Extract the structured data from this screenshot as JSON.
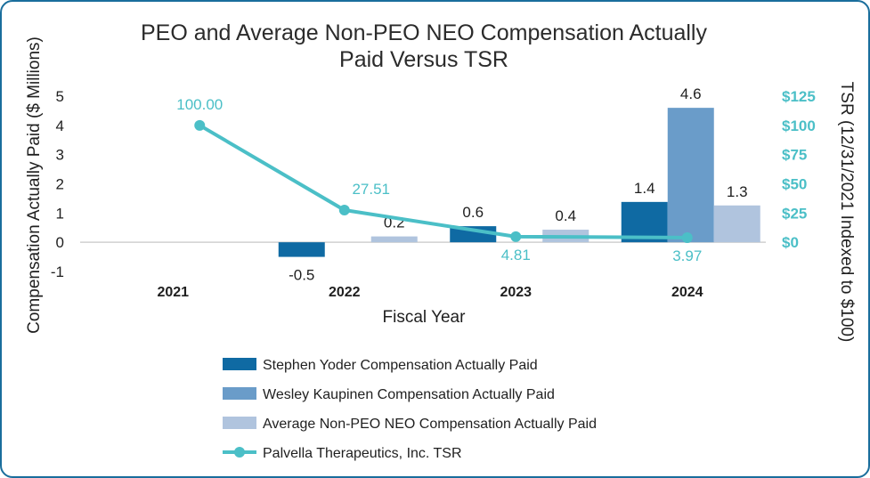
{
  "chart_data": {
    "type": "bar+line",
    "title_lines": [
      "PEO and Average Non-PEO NEO Compensation Actually",
      "Paid Versus TSR"
    ],
    "xlabel": "Fiscal Year",
    "ylabel": "Compensation Actually Paid ($ Millions)",
    "y2label": "TSR (12/31/2021 Indexed to $100)",
    "categories": [
      "2021",
      "2022",
      "2023",
      "2024"
    ],
    "ylim": [
      -1,
      5
    ],
    "yticks": [
      "-1",
      "0",
      "1",
      "2",
      "3",
      "4",
      "5"
    ],
    "y2lim": [
      -25,
      125
    ],
    "y2ticks": [
      "$0",
      "$25",
      "$50",
      "$75",
      "$100",
      "$125"
    ],
    "y2tick_values": [
      0,
      25,
      50,
      75,
      100,
      125
    ],
    "series": [
      {
        "name": "Stephen Yoder Compensation Actually Paid",
        "kind": "bar",
        "color": "#0f6aa3",
        "values": [
          null,
          -0.5,
          0.55,
          1.38
        ],
        "labels": [
          "",
          "-0.5",
          "0.6",
          "1.4"
        ]
      },
      {
        "name": "Wesley Kaupinen Compensation Actually Paid",
        "kind": "bar",
        "color": "#6a9cc9",
        "values": [
          null,
          null,
          null,
          4.6
        ],
        "labels": [
          "",
          "",
          "",
          "4.6"
        ]
      },
      {
        "name": "Average Non-PEO NEO Compensation Actually Paid",
        "kind": "bar",
        "color": "#b0c4de",
        "values": [
          null,
          0.2,
          0.43,
          1.26
        ],
        "labels": [
          "",
          "0.2",
          "0.4",
          "1.3"
        ]
      },
      {
        "name": "Palvella Therapeutics, Inc. TSR",
        "kind": "line",
        "axis": "right",
        "color": "#4bbfc7",
        "values": [
          100.0,
          27.51,
          4.81,
          3.97
        ],
        "labels": [
          "100.00",
          "27.51",
          "4.81",
          "3.97"
        ]
      }
    ],
    "legend_position": "bottom",
    "colors": {
      "axis_text": "#1f1f1f",
      "tsr": "#4bbfc7",
      "zero_line": "#d0d0d0",
      "frame": "#1a6e9c"
    }
  }
}
